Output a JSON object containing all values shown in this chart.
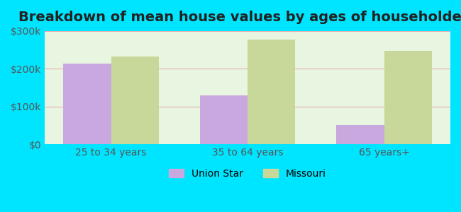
{
  "title": "Breakdown of mean house values by ages of householders",
  "categories": [
    "25 to 34 years",
    "35 to 64 years",
    "65 years+"
  ],
  "union_star_values": [
    213000,
    130000,
    50000
  ],
  "missouri_values": [
    232000,
    278000,
    248000
  ],
  "union_star_color": "#c9a8e0",
  "missouri_color": "#c8d89a",
  "ylim": [
    0,
    300000
  ],
  "yticks": [
    0,
    100000,
    200000,
    300000
  ],
  "ytick_labels": [
    "$0",
    "$100k",
    "$200k",
    "$300k"
  ],
  "bar_width": 0.35,
  "background_outer": "#00e5ff",
  "background_inner": "#e8f5e0",
  "legend_labels": [
    "Union Star",
    "Missouri"
  ],
  "title_fontsize": 14,
  "tick_fontsize": 10,
  "legend_fontsize": 10
}
